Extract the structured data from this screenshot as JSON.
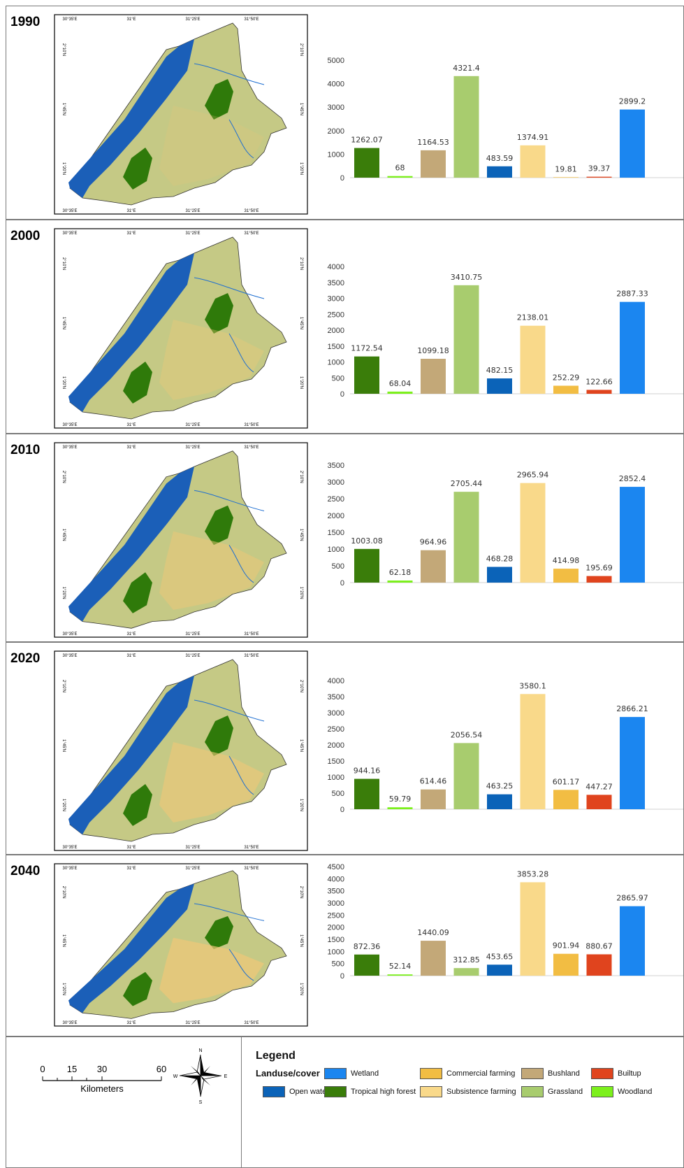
{
  "colors": {
    "tropical_high_forest": "#3a7d0a",
    "woodland": "#7cf01c",
    "bushland": "#c3a878",
    "grassland": "#a8cc6e",
    "open_water": "#0b63b8",
    "subsistence_farming": "#f9d98a",
    "commercial_farming": "#f2bd43",
    "builtup": "#e0441e",
    "wetland": "#1b86f0"
  },
  "map_graticule": {
    "top_labels": [
      "30°35'E",
      "31°E",
      "31°25'E",
      "31°50'E"
    ],
    "side_labels": [
      "2°10'N",
      "1°45'N",
      "1°20'N"
    ]
  },
  "chart_data": [
    {
      "type": "bar",
      "title": "1990",
      "series_order": [
        "tropical_high_forest",
        "woodland",
        "bushland",
        "grassland",
        "open_water",
        "subsistence_farming",
        "commercial_farming",
        "builtup",
        "wetland"
      ],
      "values": [
        1262.07,
        68,
        1164.53,
        4321.4,
        483.59,
        1374.91,
        19.81,
        39.37,
        2899.2
      ],
      "value_labels": [
        "1262.07",
        "68",
        "1164.53",
        "4321.4",
        "483.59",
        "1374.91",
        "19.81",
        "39.37",
        "2899.2"
      ],
      "yticks": [
        0,
        1000,
        2000,
        3000,
        4000,
        5000
      ],
      "ylim": [
        0,
        5000
      ],
      "grid": false
    },
    {
      "type": "bar",
      "title": "2000",
      "series_order": [
        "tropical_high_forest",
        "woodland",
        "bushland",
        "grassland",
        "open_water",
        "subsistence_farming",
        "commercial_farming",
        "builtup",
        "wetland"
      ],
      "values": [
        1172.54,
        68.04,
        1099.18,
        3410.75,
        482.15,
        2138.01,
        252.29,
        122.66,
        2887.33
      ],
      "value_labels": [
        "1172.54",
        "68.04",
        "1099.18",
        "3410.75",
        "482.15",
        "2138.01",
        "252.29",
        "122.66",
        "2887.33"
      ],
      "yticks": [
        0,
        500,
        1000,
        1500,
        2000,
        2500,
        3000,
        3500,
        4000
      ],
      "ylim": [
        0,
        4000
      ],
      "grid": false
    },
    {
      "type": "bar",
      "title": "2010",
      "series_order": [
        "tropical_high_forest",
        "woodland",
        "bushland",
        "grassland",
        "open_water",
        "subsistence_farming",
        "commercial_farming",
        "builtup",
        "wetland"
      ],
      "values": [
        1003.08,
        62.18,
        964.96,
        2705.44,
        468.28,
        2965.94,
        414.98,
        195.69,
        2852.4
      ],
      "value_labels": [
        "1003.08",
        "62.18",
        "964.96",
        "2705.44",
        "468.28",
        "2965.94",
        "414.98",
        "195.69",
        "2852.4"
      ],
      "yticks": [
        0,
        500,
        1000,
        1500,
        2000,
        2500,
        3000,
        3500
      ],
      "ylim": [
        0,
        3500
      ],
      "grid": false
    },
    {
      "type": "bar",
      "title": "2020",
      "series_order": [
        "tropical_high_forest",
        "woodland",
        "bushland",
        "grassland",
        "open_water",
        "subsistence_farming",
        "commercial_farming",
        "builtup",
        "wetland"
      ],
      "values": [
        944.16,
        59.79,
        614.46,
        2056.54,
        463.25,
        3580.1,
        601.17,
        447.27,
        2866.21
      ],
      "value_labels": [
        "944.16",
        "59.79",
        "614.46",
        "2056.54",
        "463.25",
        "3580.1",
        "601.17",
        "447.27",
        "2866.21"
      ],
      "yticks": [
        0,
        500,
        1000,
        1500,
        2000,
        2500,
        3000,
        3500,
        4000
      ],
      "ylim": [
        0,
        4000
      ],
      "grid": false
    },
    {
      "type": "bar",
      "title": "2040",
      "series_order": [
        "tropical_high_forest",
        "woodland",
        "bushland",
        "grassland",
        "open_water",
        "subsistence_farming",
        "commercial_farming",
        "builtup",
        "wetland"
      ],
      "values": [
        872.36,
        52.14,
        1440.09,
        312.85,
        453.65,
        3853.28,
        901.94,
        880.67,
        2865.97
      ],
      "value_labels": [
        "872.36",
        "52.14",
        "1440.09",
        "312.85",
        "453.65",
        "3853.28",
        "901.94",
        "880.67",
        "2865.97"
      ],
      "yticks": [
        0,
        500,
        1000,
        1500,
        2000,
        2500,
        3000,
        3500,
        4000,
        4500
      ],
      "ylim": [
        0,
        4500
      ],
      "grid": false
    }
  ],
  "scale_bar": {
    "ticks": [
      "0",
      "15",
      "30",
      "60"
    ],
    "unit": "Kilometers"
  },
  "north_arrow": {
    "n": "N",
    "s": "S",
    "e": "E",
    "w": "W"
  },
  "legend": {
    "title": "Legend",
    "heading": "Landuse/cover",
    "items": {
      "wetland": "Wetland",
      "open_water": "Open water",
      "tropical_high_forest": "Tropical high forest",
      "commercial_farming": "Commercial farming",
      "subsistence_farming": "Subsistence farming",
      "bushland": "Bushland",
      "grassland": "Grassland",
      "builtup": "Builtup",
      "woodland": "Woodland"
    }
  }
}
